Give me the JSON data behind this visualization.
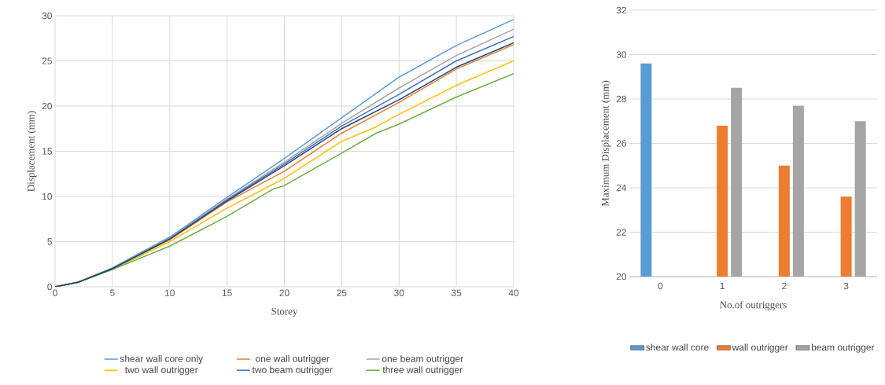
{
  "chart_data": [
    {
      "type": "line",
      "xlabel": "Storey",
      "ylabel": "Displacement (mm)",
      "xlim": [
        0,
        40
      ],
      "xticks": [
        0,
        5,
        10,
        15,
        20,
        25,
        30,
        35,
        40
      ],
      "ylim": [
        0,
        30
      ],
      "yticks": [
        0,
        5,
        10,
        15,
        20,
        25,
        30
      ],
      "grid": true,
      "legend": "bottom",
      "series": [
        {
          "name": "shear wall core only",
          "color": "#5b9bd5",
          "x": [
            0,
            2,
            5,
            10,
            15,
            20,
            25,
            30,
            35,
            40
          ],
          "values": [
            0,
            0.5,
            2.1,
            5.5,
            9.9,
            14.2,
            18.7,
            23.2,
            26.7,
            29.6
          ]
        },
        {
          "name": "one wall outrigger",
          "color": "#ed7d31",
          "x": [
            0,
            2,
            5,
            10,
            15,
            20,
            25,
            30,
            35,
            40
          ],
          "values": [
            0,
            0.5,
            2.0,
            5.2,
            9.4,
            12.8,
            17.0,
            20.4,
            24.1,
            26.8
          ]
        },
        {
          "name": "one beam outrigger",
          "color": "#a5a5a5",
          "x": [
            0,
            2,
            5,
            10,
            15,
            20,
            25,
            30,
            35,
            40
          ],
          "values": [
            0,
            0.5,
            2.0,
            5.4,
            9.7,
            13.8,
            18.1,
            22.0,
            25.6,
            28.5
          ]
        },
        {
          "name": "two wall outrigger",
          "color": "#ffc000",
          "x": [
            0,
            2,
            5,
            10,
            15,
            20,
            25,
            28,
            30,
            35,
            40
          ],
          "values": [
            0,
            0.5,
            1.9,
            5.0,
            8.7,
            12.0,
            16.1,
            17.7,
            19.1,
            22.3,
            25.0
          ]
        },
        {
          "name": "two beam outrigger",
          "color": "#4472c4",
          "x": [
            0,
            2,
            5,
            10,
            15,
            20,
            25,
            30,
            35,
            40
          ],
          "values": [
            0,
            0.5,
            2.0,
            5.3,
            9.6,
            13.6,
            17.8,
            21.3,
            25.0,
            27.7
          ]
        },
        {
          "name": "three wall outrigger",
          "color": "#70ad47",
          "x": [
            0,
            2,
            5,
            10,
            15,
            19,
            20,
            25,
            28,
            30,
            35,
            40
          ],
          "values": [
            0,
            0.5,
            1.9,
            4.5,
            7.8,
            10.8,
            11.2,
            14.8,
            17.0,
            18.0,
            21.0,
            23.6
          ]
        },
        {
          "color": "#264478",
          "x": [
            0,
            2,
            5,
            10,
            15,
            20,
            25,
            30,
            35,
            40
          ],
          "values": [
            0,
            0.5,
            2.0,
            5.3,
            9.5,
            13.4,
            17.5,
            20.7,
            24.3,
            27.0
          ]
        }
      ]
    },
    {
      "type": "bar",
      "xlabel": "No.of outriggers",
      "ylabel": "Maximum Displacement (mm)",
      "categories": [
        "0",
        "1",
        "2",
        "3"
      ],
      "ylim": [
        20,
        32
      ],
      "yticks": [
        20,
        22,
        24,
        26,
        28,
        30,
        32
      ],
      "grid": "y",
      "legend": "bottom",
      "series": [
        {
          "name": "shear wall core",
          "color": "#5b9bd5",
          "values": [
            29.6,
            null,
            null,
            null
          ]
        },
        {
          "name": "wall outrigger",
          "color": "#ed7d31",
          "values": [
            null,
            26.8,
            25.0,
            23.6
          ]
        },
        {
          "name": "beam outrigger",
          "color": "#a5a5a5",
          "values": [
            null,
            28.5,
            27.7,
            27.0
          ]
        }
      ]
    }
  ]
}
